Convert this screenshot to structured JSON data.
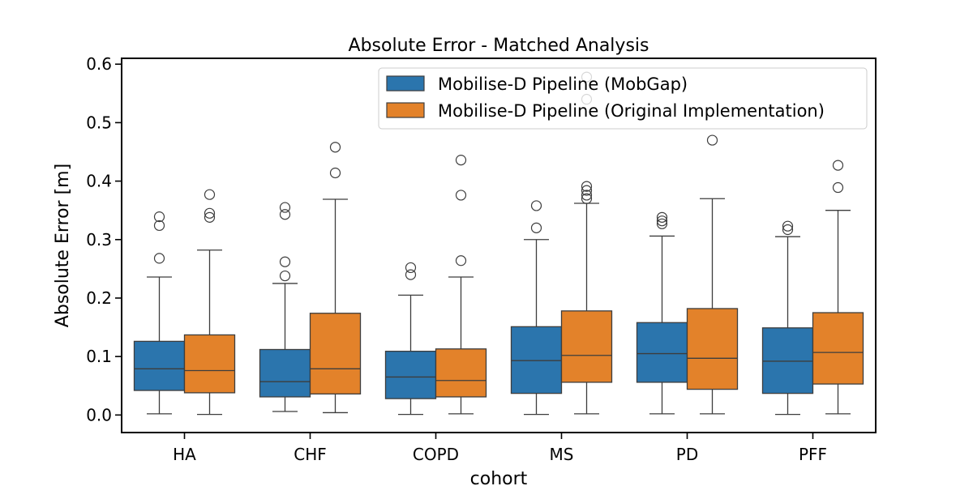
{
  "chart_data": {
    "type": "box",
    "title": "Absolute Error - Matched Analysis",
    "xlabel": "cohort",
    "ylabel": "Absolute Error [m]",
    "ylim": [
      -0.03,
      0.61
    ],
    "yticks": [
      0.0,
      0.1,
      0.2,
      0.3,
      0.4,
      0.5,
      0.6
    ],
    "ytick_labels": [
      "0.0",
      "0.1",
      "0.2",
      "0.3",
      "0.4",
      "0.5",
      "0.6"
    ],
    "categories": [
      "HA",
      "CHF",
      "COPD",
      "MS",
      "PD",
      "PFF"
    ],
    "legend_position": "top-right",
    "series": [
      {
        "name": "Mobilise-D Pipeline (MobGap)",
        "color": "#2b75ad",
        "boxes": [
          {
            "whislo": 0.002,
            "q1": 0.042,
            "med": 0.079,
            "q3": 0.126,
            "whishi": 0.236,
            "fliers": [
              0.268,
              0.324,
              0.339
            ]
          },
          {
            "whislo": 0.006,
            "q1": 0.031,
            "med": 0.057,
            "q3": 0.112,
            "whishi": 0.225,
            "fliers": [
              0.238,
              0.262,
              0.343,
              0.355
            ]
          },
          {
            "whislo": 0.001,
            "q1": 0.028,
            "med": 0.065,
            "q3": 0.109,
            "whishi": 0.205,
            "fliers": [
              0.24,
              0.252
            ]
          },
          {
            "whislo": 0.001,
            "q1": 0.037,
            "med": 0.093,
            "q3": 0.151,
            "whishi": 0.3,
            "fliers": [
              0.32,
              0.358
            ]
          },
          {
            "whislo": 0.002,
            "q1": 0.056,
            "med": 0.105,
            "q3": 0.158,
            "whishi": 0.306,
            "fliers": [
              0.327,
              0.332,
              0.338
            ]
          },
          {
            "whislo": 0.001,
            "q1": 0.037,
            "med": 0.092,
            "q3": 0.149,
            "whishi": 0.305,
            "fliers": [
              0.317,
              0.323
            ]
          }
        ]
      },
      {
        "name": "Mobilise-D Pipeline (Original Implementation)",
        "color": "#e3822a",
        "boxes": [
          {
            "whislo": 0.001,
            "q1": 0.038,
            "med": 0.076,
            "q3": 0.137,
            "whishi": 0.282,
            "fliers": [
              0.338,
              0.345,
              0.377
            ]
          },
          {
            "whislo": 0.004,
            "q1": 0.036,
            "med": 0.079,
            "q3": 0.174,
            "whishi": 0.369,
            "fliers": [
              0.414,
              0.458
            ]
          },
          {
            "whislo": 0.002,
            "q1": 0.031,
            "med": 0.059,
            "q3": 0.113,
            "whishi": 0.236,
            "fliers": [
              0.264,
              0.376,
              0.436
            ]
          },
          {
            "whislo": 0.002,
            "q1": 0.056,
            "med": 0.102,
            "q3": 0.178,
            "whishi": 0.362,
            "fliers": [
              0.37,
              0.376,
              0.384,
              0.391,
              0.54,
              0.578
            ]
          },
          {
            "whislo": 0.002,
            "q1": 0.044,
            "med": 0.097,
            "q3": 0.182,
            "whishi": 0.37,
            "fliers": [
              0.47
            ]
          },
          {
            "whislo": 0.002,
            "q1": 0.053,
            "med": 0.107,
            "q3": 0.175,
            "whishi": 0.35,
            "fliers": [
              0.389,
              0.427
            ]
          }
        ]
      }
    ]
  }
}
